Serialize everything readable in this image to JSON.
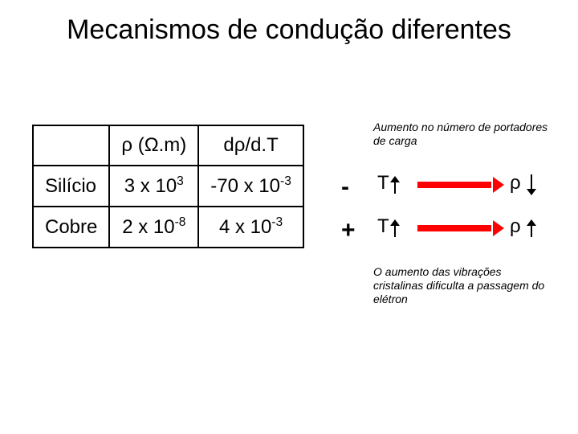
{
  "title": "Mecanismos de condução diferentes",
  "table": {
    "header_rho_html": "ρ (Ω.m)",
    "header_drho_html": "dρ/d.T",
    "rows": [
      {
        "label": "Silício",
        "rho_base": "3 x 10",
        "rho_exp": "3",
        "drho_base": "-70 x 10",
        "drho_exp": "-3",
        "sign": "-",
        "rho_trend": "down"
      },
      {
        "label": "Cobre",
        "rho_base": "2 x 10",
        "rho_exp": "-8",
        "drho_base": "4 x 10",
        "drho_exp": "-3",
        "sign": "+",
        "rho_trend": "up"
      }
    ]
  },
  "notes": {
    "top": "Aumento no número de portadores de carga",
    "bottom": "O aumento das vibrações cristalinas dificulta a passagem do elétron"
  },
  "symbols": {
    "T": "T",
    "rho": "ρ"
  },
  "style": {
    "background": "#ffffff",
    "text_color": "#000000",
    "border_color": "#000000",
    "arrow_color": "#ff0000",
    "title_fontsize": 34,
    "cell_fontsize": 24,
    "note_fontsize": 14
  }
}
